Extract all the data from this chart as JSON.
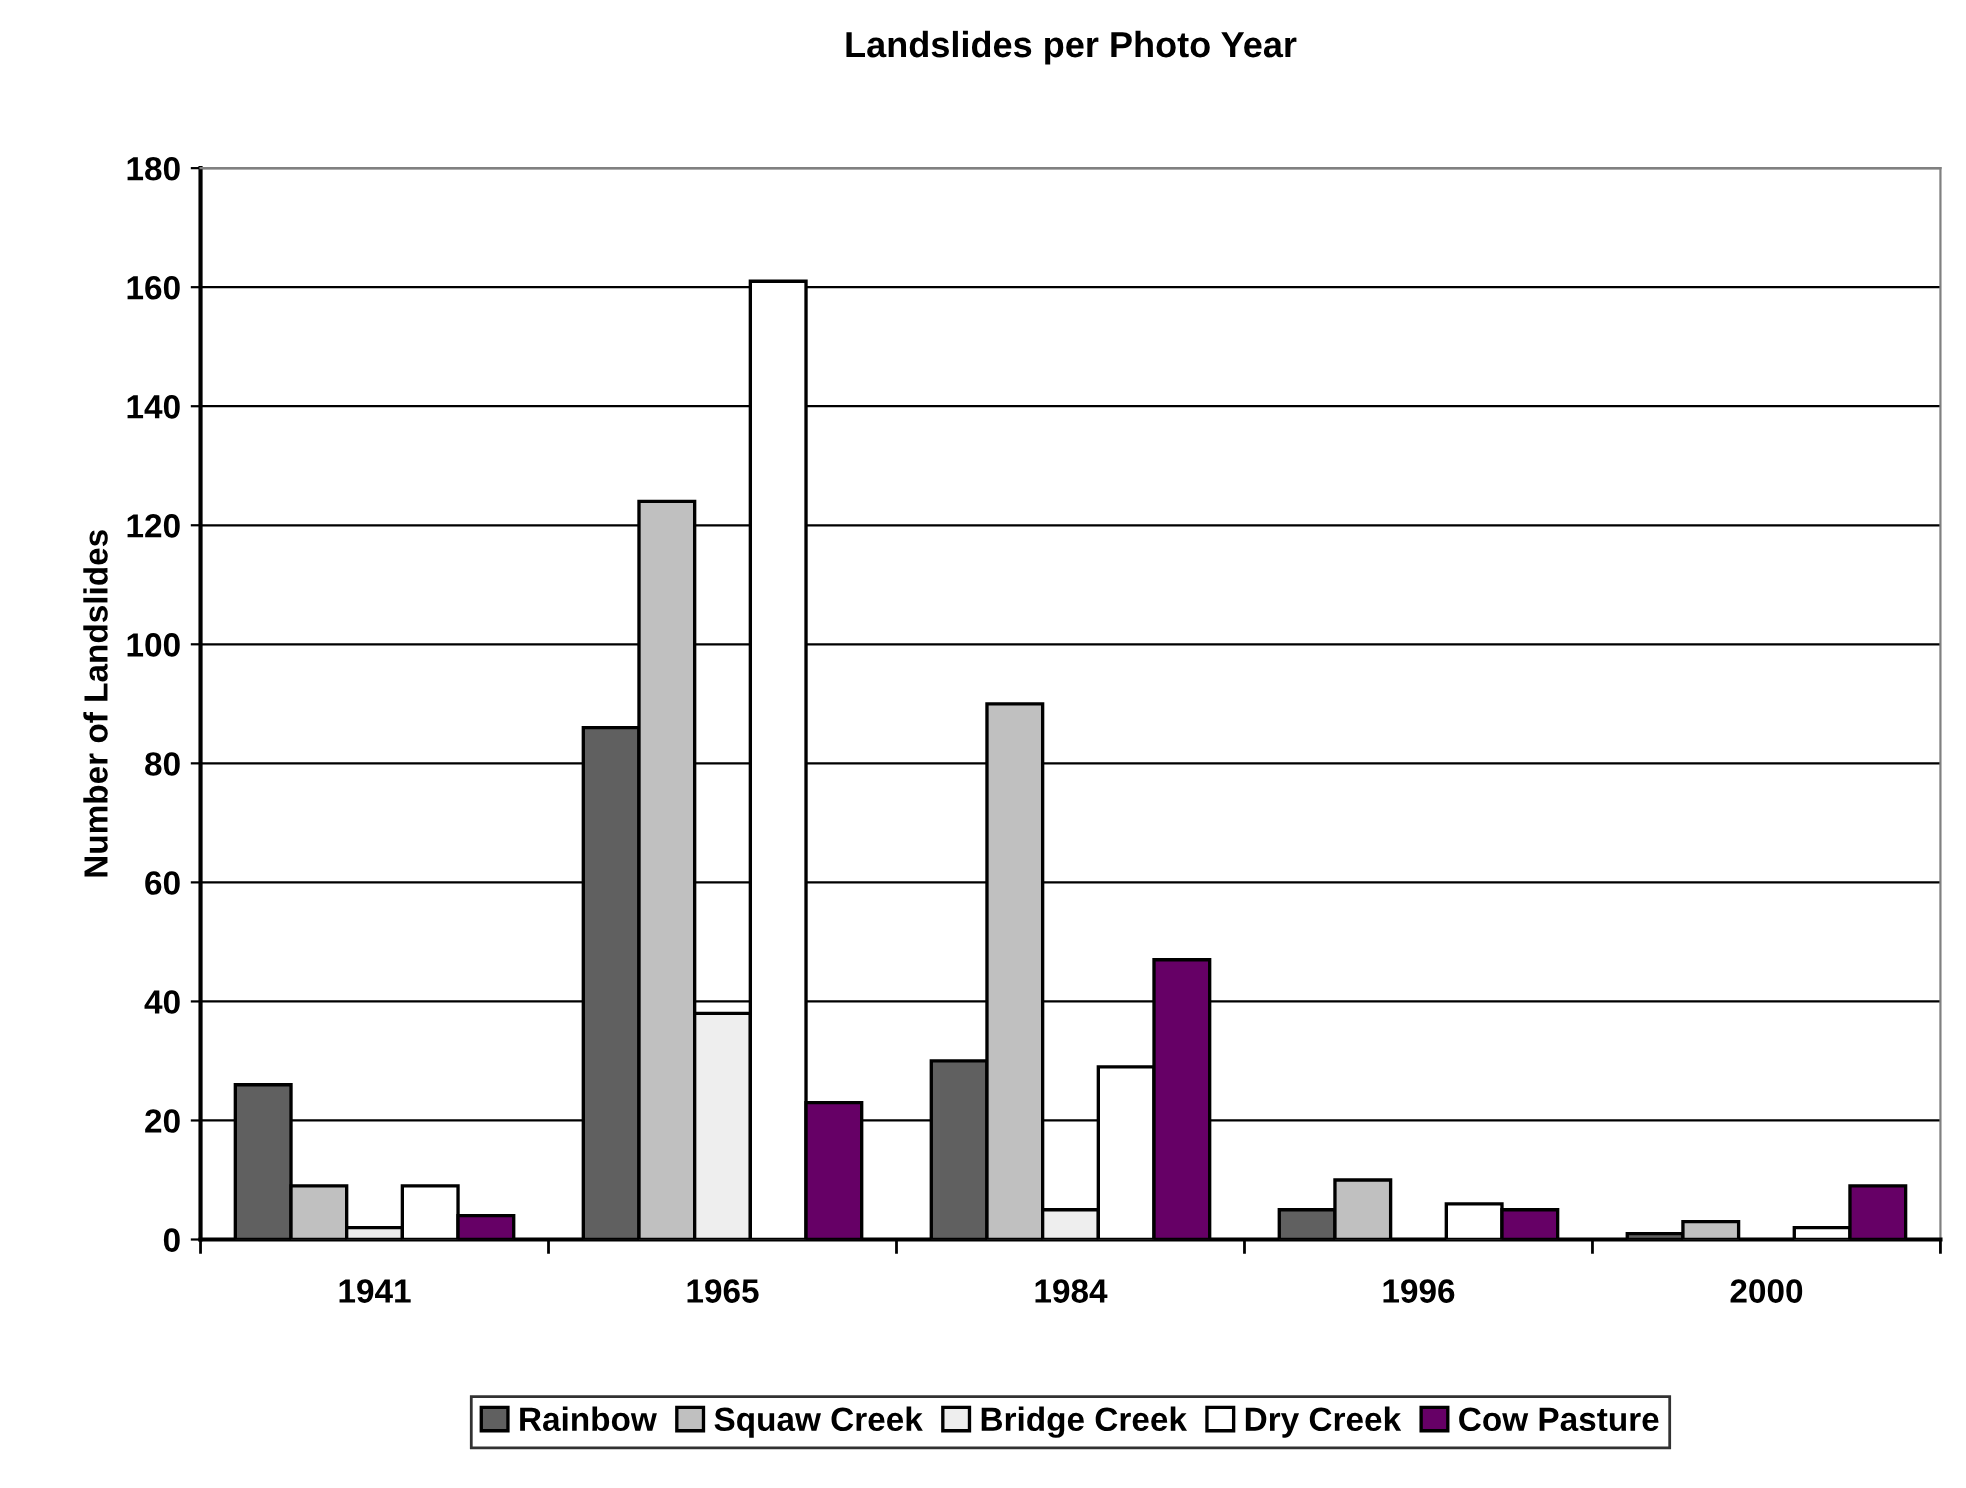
{
  "chart_data": {
    "type": "bar",
    "title": "Landslides per Photo Year",
    "ylabel": "Number of Landslides",
    "categories": [
      "1941",
      "1965",
      "1984",
      "1996",
      "2000"
    ],
    "series": [
      {
        "name": "Rainbow",
        "color": "#606060",
        "values": [
          26,
          86,
          30,
          5,
          1
        ]
      },
      {
        "name": "Squaw Creek",
        "color": "#c0c0c0",
        "values": [
          9,
          124,
          90,
          10,
          3
        ]
      },
      {
        "name": "Bridge Creek",
        "color": "#eeeeee",
        "values": [
          2,
          38,
          5,
          null,
          null
        ]
      },
      {
        "name": "Dry Creek",
        "color": "#ffffff",
        "values": [
          9,
          161,
          29,
          6,
          2
        ]
      },
      {
        "name": "Cow Pasture",
        "color": "#660066",
        "values": [
          4,
          23,
          47,
          5,
          9
        ]
      }
    ],
    "ylim": [
      0,
      180
    ],
    "yticks": [
      0,
      20,
      40,
      60,
      80,
      100,
      120,
      140,
      160,
      180
    ],
    "grid": "y",
    "legend": "bottom"
  }
}
